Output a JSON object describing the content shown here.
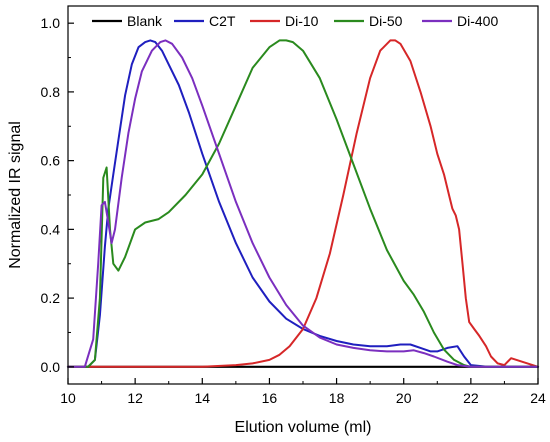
{
  "chart_data": {
    "type": "line",
    "title": "",
    "xlabel": "Elution volume (ml)",
    "ylabel": "Normalized IR signal",
    "xlim": [
      10,
      24
    ],
    "ylim": [
      -0.05,
      1.05
    ],
    "xticks": [
      10,
      12,
      14,
      16,
      18,
      20,
      22,
      24
    ],
    "yticks": [
      0.0,
      0.2,
      0.4,
      0.6,
      0.8,
      1.0
    ],
    "xtick_labels": [
      "10",
      "12",
      "14",
      "16",
      "18",
      "20",
      "22",
      "24"
    ],
    "ytick_labels": [
      "0.0",
      "0.2",
      "0.4",
      "0.6",
      "0.8",
      "1.0"
    ],
    "grid": false,
    "legend_position": "top",
    "series": [
      {
        "name": "Blank",
        "color": "#000000",
        "x": [
          10,
          24
        ],
        "y": [
          0.0,
          0.0
        ]
      },
      {
        "name": "C2T",
        "color": "#1f1fbf",
        "x": [
          10,
          10.6,
          10.8,
          10.95,
          11.1,
          11.2,
          11.35,
          11.5,
          11.7,
          11.9,
          12.1,
          12.3,
          12.45,
          12.6,
          12.8,
          13.0,
          13.3,
          13.6,
          14.0,
          14.5,
          15.0,
          15.5,
          16.0,
          16.5,
          17.0,
          17.5,
          18.0,
          18.5,
          19.0,
          19.5,
          19.9,
          20.2,
          20.5,
          20.8,
          21.0,
          21.3,
          21.6,
          21.8,
          22.0,
          22.5,
          24
        ],
        "y": [
          0.0,
          0.0,
          0.02,
          0.15,
          0.35,
          0.46,
          0.56,
          0.66,
          0.79,
          0.88,
          0.93,
          0.945,
          0.95,
          0.945,
          0.92,
          0.88,
          0.82,
          0.74,
          0.62,
          0.48,
          0.36,
          0.26,
          0.19,
          0.14,
          0.11,
          0.09,
          0.075,
          0.065,
          0.06,
          0.06,
          0.065,
          0.065,
          0.055,
          0.045,
          0.045,
          0.055,
          0.06,
          0.03,
          0.005,
          0.0,
          0.0
        ]
      },
      {
        "name": "Di-10",
        "color": "#d62728",
        "x": [
          10,
          14,
          15,
          15.5,
          16.0,
          16.3,
          16.6,
          17.0,
          17.4,
          17.8,
          18.2,
          18.6,
          19.0,
          19.3,
          19.6,
          19.75,
          19.9,
          20.2,
          20.5,
          20.8,
          21.0,
          21.2,
          21.35,
          21.45,
          21.55,
          21.65,
          21.75,
          21.85,
          21.95,
          22.1,
          22.25,
          22.45,
          22.6,
          22.8,
          23.0,
          23.2,
          24
        ],
        "y": [
          0.0,
          0.0,
          0.005,
          0.01,
          0.02,
          0.035,
          0.06,
          0.11,
          0.2,
          0.33,
          0.5,
          0.68,
          0.84,
          0.92,
          0.95,
          0.95,
          0.94,
          0.89,
          0.8,
          0.7,
          0.62,
          0.56,
          0.5,
          0.46,
          0.44,
          0.4,
          0.3,
          0.2,
          0.13,
          0.11,
          0.09,
          0.06,
          0.03,
          0.01,
          0.005,
          0.025,
          0.0
        ]
      },
      {
        "name": "Di-50",
        "color": "#2a8a1e",
        "x": [
          10,
          10.6,
          10.8,
          10.95,
          11.05,
          11.15,
          11.25,
          11.35,
          11.5,
          11.7,
          12.0,
          12.3,
          12.7,
          13.0,
          13.5,
          14.0,
          14.5,
          15.0,
          15.5,
          16.0,
          16.3,
          16.5,
          16.7,
          17.0,
          17.5,
          18.0,
          18.5,
          19.0,
          19.5,
          20.0,
          20.3,
          20.6,
          20.9,
          21.2,
          21.5,
          21.8,
          22.0,
          24
        ],
        "y": [
          0.0,
          0.0,
          0.02,
          0.2,
          0.55,
          0.58,
          0.4,
          0.3,
          0.28,
          0.32,
          0.4,
          0.42,
          0.43,
          0.45,
          0.5,
          0.56,
          0.65,
          0.76,
          0.87,
          0.93,
          0.95,
          0.95,
          0.945,
          0.92,
          0.84,
          0.72,
          0.59,
          0.46,
          0.34,
          0.25,
          0.21,
          0.16,
          0.1,
          0.05,
          0.02,
          0.005,
          0.0,
          0.0
        ]
      },
      {
        "name": "Di-400",
        "color": "#7b2fbf",
        "x": [
          10,
          10.5,
          10.75,
          10.9,
          11.0,
          11.1,
          11.2,
          11.3,
          11.4,
          11.6,
          11.8,
          12.0,
          12.2,
          12.5,
          12.75,
          12.9,
          13.1,
          13.4,
          13.7,
          14.0,
          14.5,
          15.0,
          15.5,
          16.0,
          16.5,
          17.0,
          17.5,
          18.0,
          18.5,
          19.0,
          19.5,
          20.0,
          20.3,
          20.6,
          20.9,
          21.3,
          21.6,
          22.0,
          24
        ],
        "y": [
          0.0,
          0.0,
          0.08,
          0.3,
          0.47,
          0.48,
          0.42,
          0.36,
          0.4,
          0.55,
          0.68,
          0.78,
          0.86,
          0.92,
          0.945,
          0.95,
          0.94,
          0.9,
          0.84,
          0.76,
          0.62,
          0.48,
          0.36,
          0.26,
          0.18,
          0.12,
          0.085,
          0.065,
          0.055,
          0.048,
          0.045,
          0.045,
          0.048,
          0.04,
          0.03,
          0.015,
          0.005,
          0.0,
          0.0
        ]
      }
    ]
  }
}
